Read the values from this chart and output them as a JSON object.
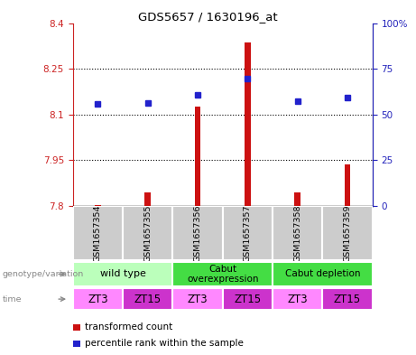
{
  "title": "GDS5657 / 1630196_at",
  "samples": [
    "GSM1657354",
    "GSM1657355",
    "GSM1657356",
    "GSM1657357",
    "GSM1657358",
    "GSM1657359"
  ],
  "red_values": [
    7.801,
    7.843,
    8.125,
    8.335,
    7.842,
    7.935
  ],
  "blue_values": [
    8.135,
    8.138,
    8.163,
    8.218,
    8.143,
    8.155
  ],
  "ylim_left": [
    7.8,
    8.4
  ],
  "ylim_right": [
    0,
    100
  ],
  "yticks_left": [
    7.8,
    7.95,
    8.1,
    8.25,
    8.4
  ],
  "yticks_right": [
    0,
    25,
    50,
    75,
    100
  ],
  "yticklabels_right": [
    "0",
    "25",
    "50",
    "75",
    "100%"
  ],
  "hlines": [
    7.95,
    8.1,
    8.25
  ],
  "time_labels": [
    "ZT3",
    "ZT15",
    "ZT3",
    "ZT15",
    "ZT3",
    "ZT15"
  ],
  "bar_color": "#cc1111",
  "dot_color": "#2222cc",
  "left_color": "#cc2222",
  "right_color": "#2222bb",
  "sample_box_color": "#cccccc",
  "sample_box_edge": "#aaaaaa",
  "wildtype_color": "#bbffbb",
  "cabut_over_color": "#44dd44",
  "cabut_dep_color": "#44dd44",
  "time_colors": [
    "#ff88ff",
    "#cc33cc",
    "#ff88ff",
    "#cc33cc",
    "#ff88ff",
    "#cc33cc"
  ],
  "legend_red_label": "transformed count",
  "legend_blue_label": "percentile rank within the sample",
  "label_color": "#888888",
  "bar_width": 0.12
}
